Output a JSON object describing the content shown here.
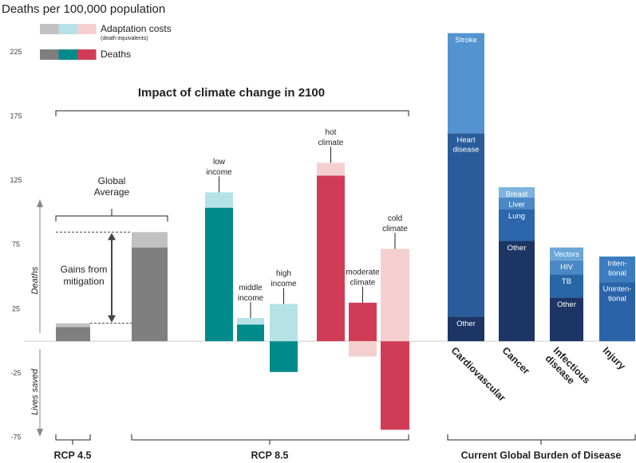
{
  "chart_data": {
    "type": "stacked_bar",
    "title": "Deaths per 100,000 population",
    "impact_title": "Impact of climate change in 2100",
    "legend": {
      "adaptation_label": "Adaptation costs",
      "adaptation_note": "(death equivalents)",
      "deaths_label": "Deaths",
      "adaptation_colors": [
        "#c1c1c1",
        "#b5e2e6",
        "#f5cfcf"
      ],
      "deaths_colors": [
        "#7f7f7f",
        "#008a8a",
        "#d03c55"
      ]
    },
    "axis_labels": {
      "positive": "Deaths",
      "negative": "Lives saved"
    },
    "annotations": {
      "global_average": [
        "Global",
        "Average"
      ],
      "gains": [
        "Gains from",
        "mitigation"
      ]
    },
    "ylim": [
      -80,
      250
    ],
    "yticks": [
      -75,
      -25,
      25,
      75,
      125,
      175,
      225
    ],
    "climate_bars": [
      {
        "segments": [
          {
            "value": 11,
            "color": "#7f7f7f"
          },
          {
            "value": 3,
            "color": "#c1c1c1"
          }
        ]
      },
      {
        "segments": [
          {
            "value": 73,
            "color": "#7f7f7f"
          },
          {
            "value": 12,
            "color": "#c1c1c1"
          }
        ]
      },
      {
        "label": [
          "low",
          "income"
        ],
        "segments": [
          {
            "value": 104,
            "color": "#008a8a"
          },
          {
            "value": 12,
            "color": "#b5e2e6"
          }
        ]
      },
      {
        "label": [
          "middle",
          "income"
        ],
        "segments": [
          {
            "value": 13,
            "color": "#008a8a"
          },
          {
            "value": 5,
            "color": "#b5e2e6"
          }
        ]
      },
      {
        "label": [
          "high",
          "income"
        ],
        "segments": [
          {
            "value": -24,
            "color": "#008a8a"
          },
          {
            "value": 29,
            "color": "#b5e2e6"
          }
        ]
      },
      {
        "label": [
          "hot",
          "climate"
        ],
        "segments": [
          {
            "value": 129,
            "color": "#d03c55"
          },
          {
            "value": 10,
            "color": "#f5cfcf"
          }
        ]
      },
      {
        "label": [
          "moderate",
          "climate"
        ],
        "segments": [
          {
            "value": 30,
            "color": "#d03c55"
          },
          {
            "value": -12,
            "color": "#f5cfcf"
          }
        ]
      },
      {
        "label": [
          "cold",
          "climate"
        ],
        "segments": [
          {
            "value": -69,
            "color": "#d03c55"
          },
          {
            "value": 72,
            "color": "#f5cfcf"
          }
        ]
      }
    ],
    "burden_bars": [
      {
        "category": [
          "Cardiovascular"
        ],
        "segments": [
          {
            "label": [
              "Other"
            ],
            "value": 19,
            "color": "#1c3564"
          },
          {
            "label": [
              "Heart",
              "disease"
            ],
            "value": 143,
            "color": "#2a5c9b"
          },
          {
            "label": [
              "Stroke"
            ],
            "value": 78,
            "color": "#5393cf"
          }
        ]
      },
      {
        "category": [
          "Cancer"
        ],
        "segments": [
          {
            "label": [
              "Other"
            ],
            "value": 78,
            "color": "#1c3564"
          },
          {
            "label": [
              "Lung"
            ],
            "value": 25,
            "color": "#2c66ab"
          },
          {
            "label": [
              "Liver"
            ],
            "value": 9,
            "color": "#4a89c6"
          },
          {
            "label": [
              "Breast"
            ],
            "value": 8,
            "color": "#7db3de"
          }
        ]
      },
      {
        "category": [
          "Infectious",
          "disease"
        ],
        "segments": [
          {
            "label": [
              "Other"
            ],
            "value": 34,
            "color": "#1c3564"
          },
          {
            "label": [
              "TB"
            ],
            "value": 18,
            "color": "#2866a8"
          },
          {
            "label": [
              "HIV"
            ],
            "value": 11,
            "color": "#4a89c6"
          },
          {
            "label": [
              "Vectors"
            ],
            "value": 10,
            "color": "#6aa6d8"
          }
        ]
      },
      {
        "category": [
          "Injury"
        ],
        "segments": [
          {
            "label": [
              "Uninten-",
              "tional"
            ],
            "value": 46,
            "color": "#2a63a8"
          },
          {
            "label": [
              "Inten-",
              "tional"
            ],
            "value": 20,
            "color": "#3c7dc0"
          }
        ]
      }
    ],
    "groups": [
      {
        "label": "RCP 4.5"
      },
      {
        "label": "RCP 8.5"
      },
      {
        "label": "Current Global Burden of Disease"
      }
    ]
  }
}
